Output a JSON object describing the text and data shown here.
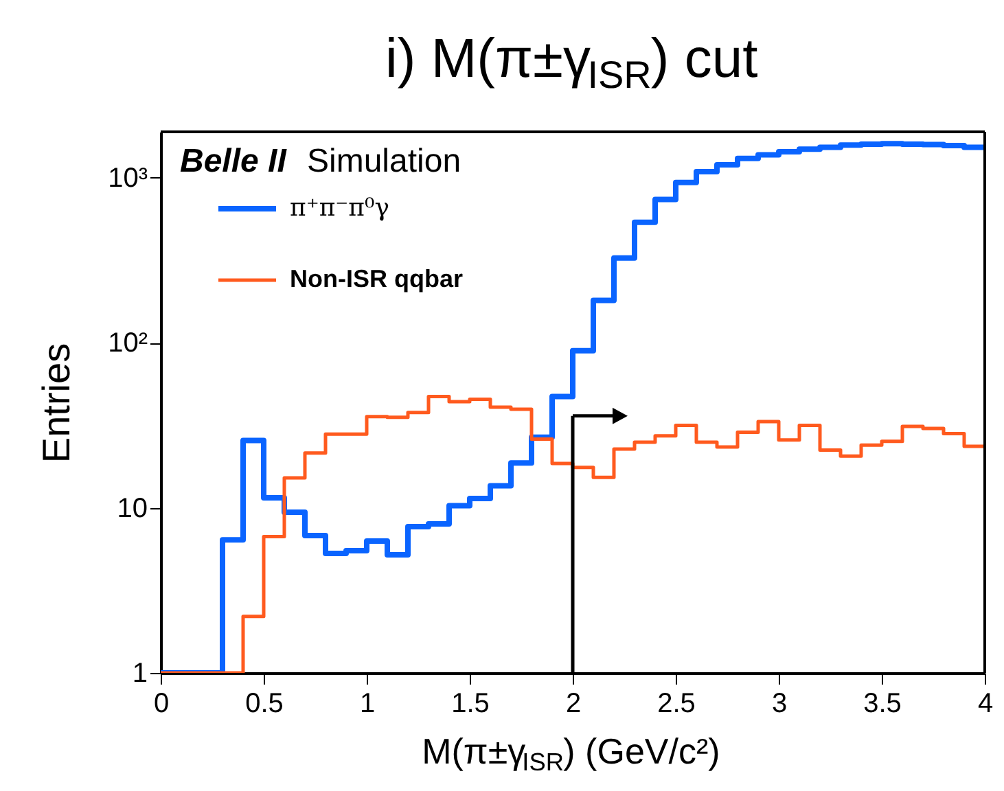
{
  "chart_data": {
    "type": "histogram",
    "title": "i) M(π±γ$_{ISR}$) cut",
    "xlabel": "M(π±γ$_{ISR}$) (GeV/c²)",
    "ylabel": "Entries",
    "annotations": [
      "Belle II",
      "Simulation"
    ],
    "bins": [
      0,
      0.1,
      0.2,
      0.3,
      0.4,
      0.5,
      0.6,
      0.7,
      0.8,
      0.9,
      1.0,
      1.1,
      1.2,
      1.3,
      1.4,
      1.5,
      1.6,
      1.7,
      1.8,
      1.9,
      2.0,
      2.1,
      2.2,
      2.3,
      2.4,
      2.5,
      2.6,
      2.7,
      2.8,
      2.9,
      3.0,
      3.1,
      3.2,
      3.3,
      3.4,
      3.5,
      3.6,
      3.7,
      3.8,
      3.9,
      4.0
    ],
    "series": [
      {
        "name": "π⁺π⁻π⁰γ",
        "color": "#0a64ff",
        "values": [
          1,
          1,
          1,
          6.4,
          25.6,
          11.5,
          9.4,
          6.8,
          5.3,
          5.5,
          6.3,
          5.2,
          7.7,
          8.0,
          10.3,
          11.4,
          13.6,
          18.7,
          26.8,
          47.3,
          89.7,
          181,
          327,
          538,
          740,
          938,
          1090,
          1200,
          1310,
          1380,
          1440,
          1490,
          1530,
          1580,
          1600,
          1610,
          1600,
          1590,
          1570,
          1530
        ]
      },
      {
        "name": "Non-ISR qqbar",
        "color": "#ff5a1e",
        "values": [
          1,
          1,
          1,
          1,
          2.2,
          6.7,
          15.2,
          21.5,
          28.0,
          28.0,
          35.7,
          35.4,
          37.8,
          47.3,
          44.0,
          45.5,
          40.8,
          39.6,
          26.1,
          18.6,
          17.6,
          15.3,
          22.7,
          25.0,
          27.3,
          31.6,
          25.0,
          23.4,
          28.7,
          33.3,
          25.8,
          31.6,
          22.4,
          20.6,
          24.0,
          25.3,
          31.2,
          30.3,
          28.2,
          23.6
        ]
      }
    ],
    "ref_lines": [
      {
        "axis": "x",
        "value": 2,
        "color": "#000000"
      }
    ],
    "xlim": [
      0,
      4
    ],
    "xticks": [
      0,
      0.5,
      1,
      1.5,
      2,
      2.5,
      3,
      3.5,
      4
    ],
    "ylim": [
      1,
      1900
    ],
    "yticks": [
      1,
      10,
      {
        "value": 100,
        "label": "10²"
      },
      {
        "value": 1000,
        "label": "10³"
      }
    ],
    "log": "y",
    "grid": false,
    "legend": "top left"
  }
}
